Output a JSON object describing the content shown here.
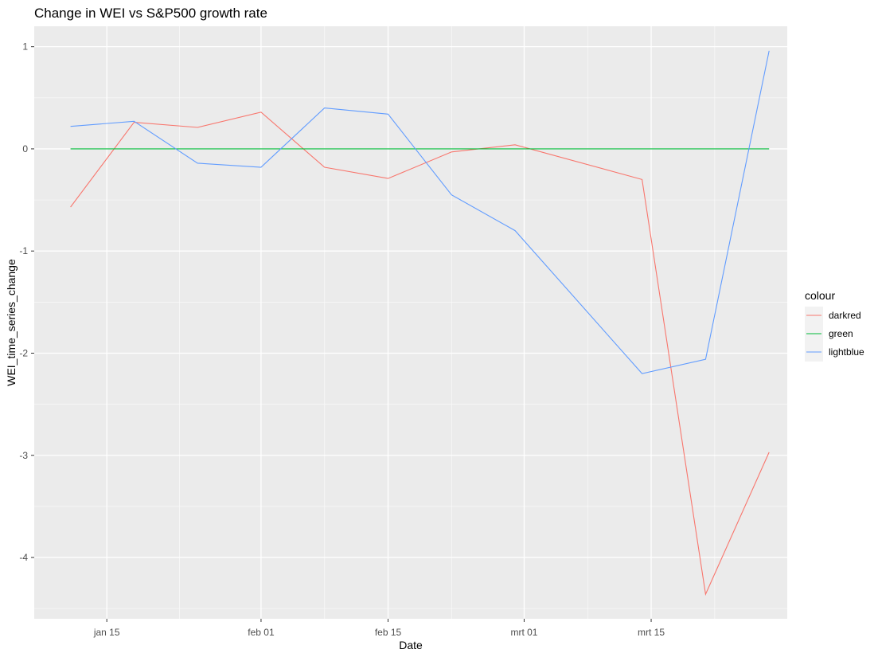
{
  "chart_data": {
    "type": "line",
    "title": "Change in WEI vs S&P500 growth rate",
    "xlabel": "Date",
    "ylabel": "WEI_time_series_change",
    "x_ticks": [
      {
        "label": "jan 15",
        "date": "2020-01-15"
      },
      {
        "label": "feb 01",
        "date": "2020-02-01"
      },
      {
        "label": "feb 15",
        "date": "2020-02-15"
      },
      {
        "label": "mrt 01",
        "date": "2020-03-01"
      },
      {
        "label": "mrt 15",
        "date": "2020-03-15"
      }
    ],
    "x_minor_ticks": [
      "2020-01-23",
      "2020-02-08",
      "2020-02-22",
      "2020-03-08",
      "2020-03-22"
    ],
    "xlim": [
      "2020-01-07",
      "2020-03-30"
    ],
    "y_ticks": [
      1,
      0,
      -1,
      -2,
      -3,
      -4
    ],
    "y_minor_ticks": [
      0.5,
      -0.5,
      -1.5,
      -2.5,
      -3.5,
      -4.5
    ],
    "ylim": [
      -4.6,
      1.2
    ],
    "x": [
      "2020-01-11",
      "2020-01-18",
      "2020-01-25",
      "2020-02-01",
      "2020-02-08",
      "2020-02-15",
      "2020-02-22",
      "2020-02-29",
      "2020-03-07",
      "2020-03-14",
      "2020-03-21",
      "2020-03-28"
    ],
    "series": [
      {
        "name": "darkred",
        "color": "#F8766D",
        "values": [
          -0.57,
          0.26,
          0.21,
          0.36,
          -0.18,
          -0.29,
          -0.03,
          0.04,
          null,
          -0.3,
          -4.36,
          -2.97
        ]
      },
      {
        "name": "green",
        "color": "#00BA38",
        "values": [
          0,
          0,
          0,
          0,
          0,
          0,
          0,
          0,
          null,
          0,
          0,
          0
        ]
      },
      {
        "name": "lightblue",
        "color": "#619CFF",
        "values": [
          0.22,
          0.27,
          -0.14,
          -0.18,
          0.4,
          0.34,
          -0.45,
          -0.8,
          null,
          -2.2,
          -2.06,
          0.96
        ]
      }
    ],
    "legend": {
      "title": "colour",
      "position": "right"
    },
    "grid": true
  }
}
